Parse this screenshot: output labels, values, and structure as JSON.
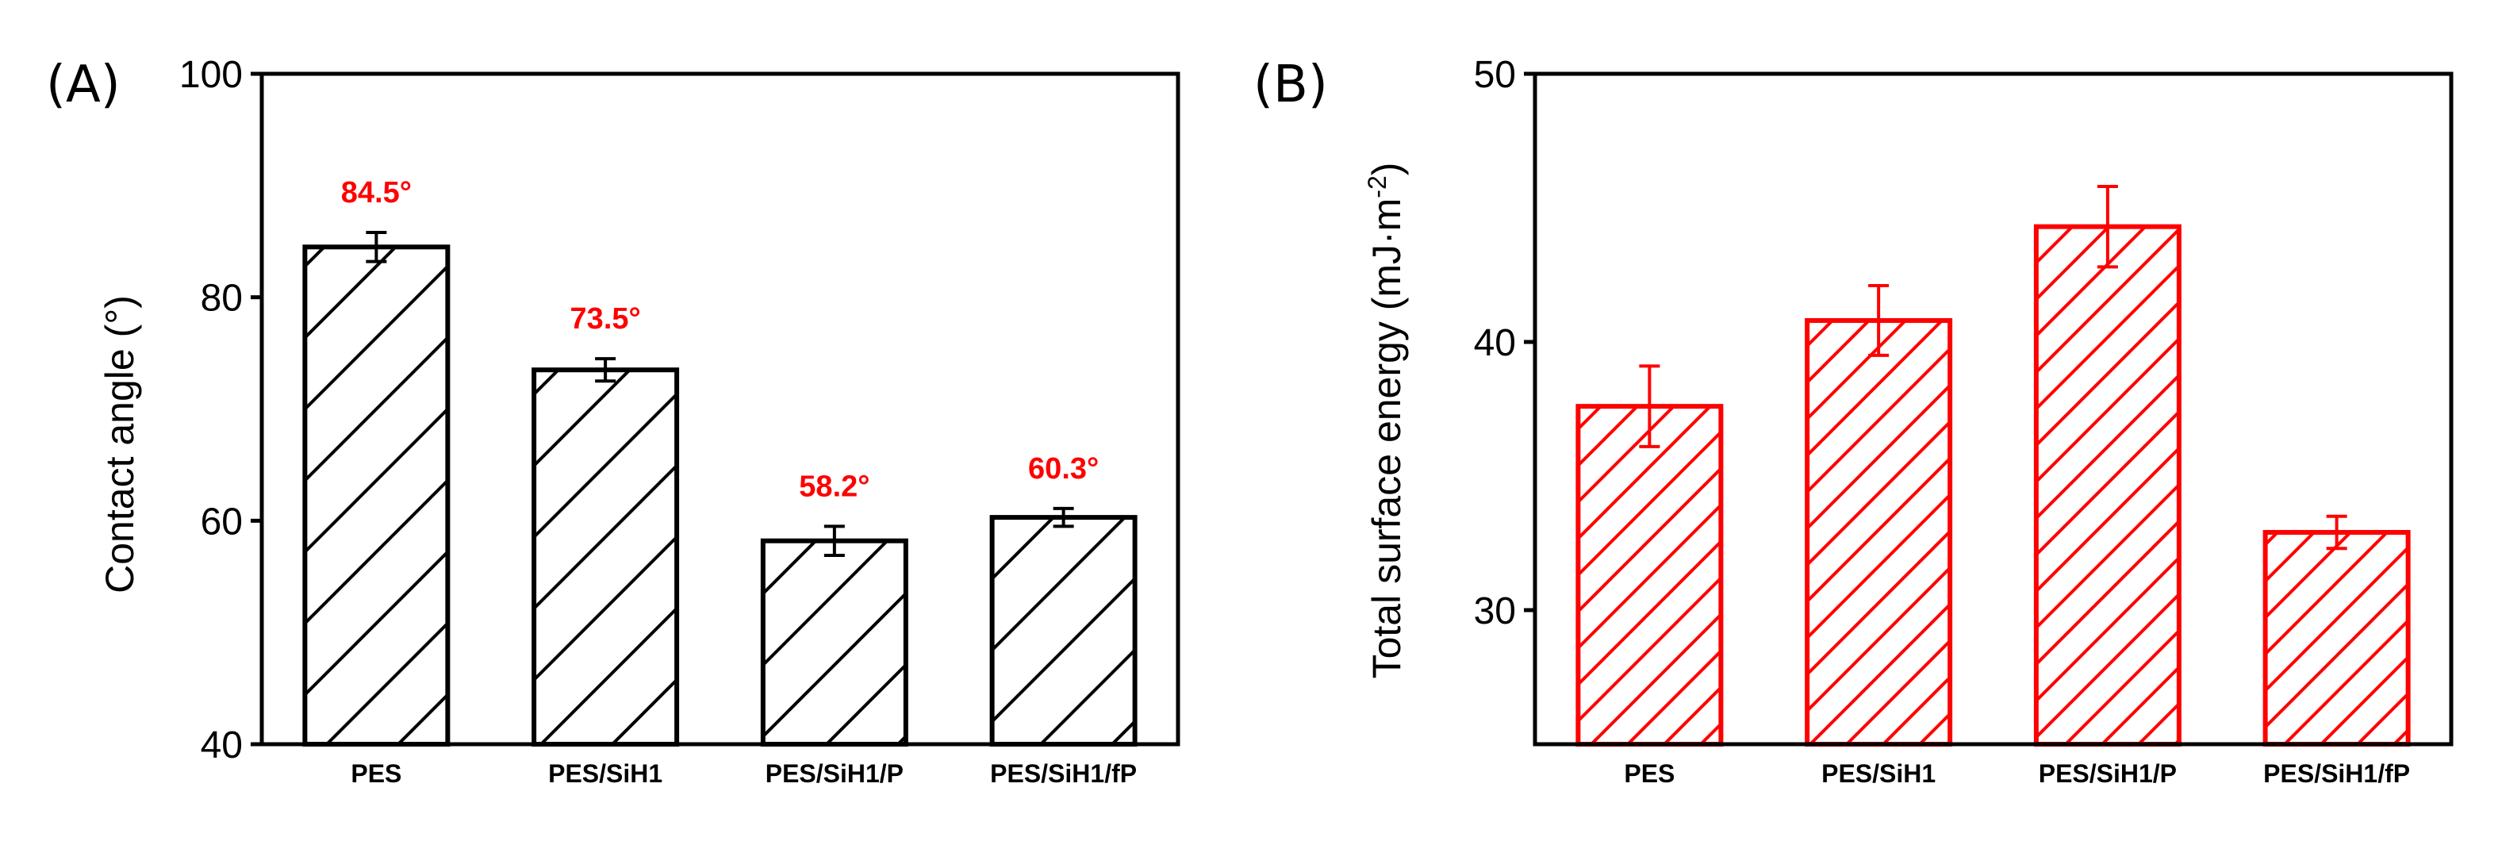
{
  "chart_data": [
    {
      "panel_label": "(A)",
      "type": "bar",
      "categories": [
        "PES",
        "PES/SiH1",
        "PES/SiH1/P",
        "PES/SiH1/fP"
      ],
      "values": [
        84.5,
        73.5,
        58.2,
        60.3
      ],
      "errors": [
        1.3,
        1.0,
        1.3,
        0.8
      ],
      "data_labels": [
        "84.5°",
        "73.5°",
        "58.2°",
        "60.3°"
      ],
      "ylabel": "Contact angle (°)",
      "xlabel": "",
      "ylim": [
        40,
        100
      ],
      "yticks": [
        40,
        60,
        80,
        100
      ],
      "bar_color": "#000000",
      "label_color": "#ff0000",
      "fill": "hatched"
    },
    {
      "panel_label": "(B)",
      "type": "bar",
      "categories": [
        "PES",
        "PES/SiH1",
        "PES/SiH1/P",
        "PES/SiH1/fP"
      ],
      "values": [
        37.6,
        40.8,
        44.3,
        32.9
      ],
      "errors": [
        1.5,
        1.3,
        1.5,
        0.6
      ],
      "ylabel_main": "Total surface energy (mJ·m",
      "ylabel_sup": "-2",
      "ylabel_end": ")",
      "xlabel": "",
      "ylim": [
        25,
        50
      ],
      "yticks": [
        30,
        40,
        50
      ],
      "bar_color": "#ff0000",
      "fill": "hatched"
    }
  ]
}
